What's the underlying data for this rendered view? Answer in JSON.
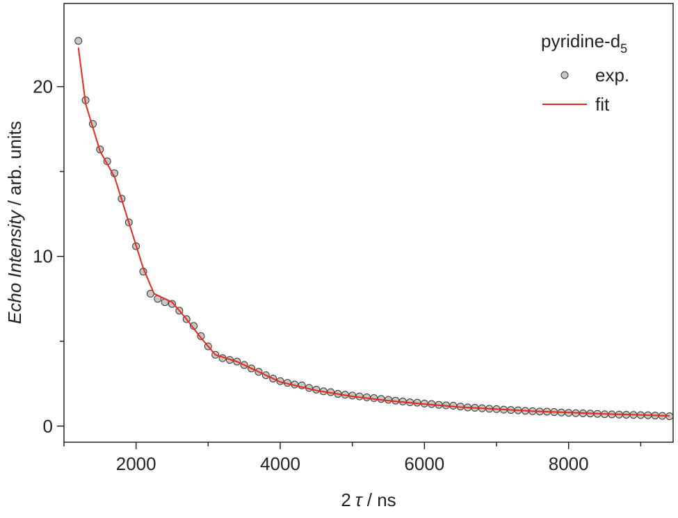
{
  "chart_data": {
    "type": "scatter",
    "xlabel": [
      "2",
      "τ",
      " / ns"
    ],
    "ylabel": [
      "Echo Intensity",
      " / arb. units"
    ],
    "legend_title": "pyridine-d",
    "legend_title_sub": "5",
    "legend": "top-right",
    "xlim": [
      1000,
      9450
    ],
    "ylim": [
      -0.95,
      24.9
    ],
    "xticks": [
      2000,
      4000,
      6000,
      8000
    ],
    "xminor": [
      1000,
      3000,
      5000,
      7000,
      9000
    ],
    "yticks": [
      0,
      10,
      20
    ],
    "yminor": [
      5,
      15
    ],
    "series": [
      {
        "name": "exp.",
        "kind": "scatter",
        "color": "#c8c8c0",
        "x": [
          1200,
          1300,
          1400,
          1500,
          1600,
          1700,
          1800,
          1900,
          2000,
          2100,
          2200,
          2300,
          2400,
          2500,
          2600,
          2700,
          2800,
          2900,
          3000,
          3100,
          3200,
          3300,
          3400,
          3500,
          3600,
          3700,
          3800,
          3900,
          4000,
          4100,
          4200,
          4300,
          4400,
          4500,
          4600,
          4700,
          4800,
          4900,
          5000,
          5100,
          5200,
          5300,
          5400,
          5500,
          5600,
          5700,
          5800,
          5900,
          6000,
          6100,
          6200,
          6300,
          6400,
          6500,
          6600,
          6700,
          6800,
          6900,
          7000,
          7100,
          7200,
          7300,
          7400,
          7500,
          7600,
          7700,
          7800,
          7900,
          8000,
          8100,
          8200,
          8300,
          8400,
          8500,
          8600,
          8700,
          8800,
          8900,
          9000,
          9100,
          9200,
          9300,
          9400
        ],
        "values": [
          22.7,
          19.2,
          17.8,
          16.3,
          15.6,
          14.9,
          13.4,
          12.0,
          10.6,
          9.1,
          7.8,
          7.5,
          7.3,
          7.2,
          6.8,
          6.3,
          5.9,
          5.3,
          4.7,
          4.2,
          4.0,
          3.9,
          3.8,
          3.6,
          3.4,
          3.2,
          3.0,
          2.8,
          2.65,
          2.55,
          2.45,
          2.4,
          2.25,
          2.15,
          2.05,
          2.0,
          1.9,
          1.85,
          1.8,
          1.75,
          1.7,
          1.65,
          1.6,
          1.55,
          1.5,
          1.45,
          1.4,
          1.38,
          1.33,
          1.3,
          1.25,
          1.22,
          1.2,
          1.15,
          1.1,
          1.08,
          1.05,
          1.02,
          1.0,
          0.97,
          0.95,
          0.93,
          0.9,
          0.88,
          0.86,
          0.85,
          0.83,
          0.8,
          0.78,
          0.76,
          0.75,
          0.74,
          0.72,
          0.7,
          0.69,
          0.68,
          0.67,
          0.66,
          0.65,
          0.64,
          0.62,
          0.6,
          0.58
        ]
      },
      {
        "name": "fit",
        "kind": "line",
        "color": "#e8251f",
        "x": [
          1200,
          1300,
          1500,
          1700,
          1900,
          2100,
          2250,
          2500,
          2700,
          2900,
          3100,
          3400,
          3700,
          4000,
          4500,
          5000,
          5500,
          6000,
          6500,
          7000,
          7500,
          8000,
          8500,
          9000,
          9400
        ],
        "values": [
          22.3,
          19.0,
          16.2,
          14.7,
          12.0,
          9.3,
          7.8,
          7.3,
          6.3,
          5.2,
          4.2,
          3.8,
          3.2,
          2.6,
          2.1,
          1.75,
          1.5,
          1.3,
          1.12,
          1.0,
          0.88,
          0.8,
          0.72,
          0.66,
          0.6
        ]
      }
    ]
  }
}
